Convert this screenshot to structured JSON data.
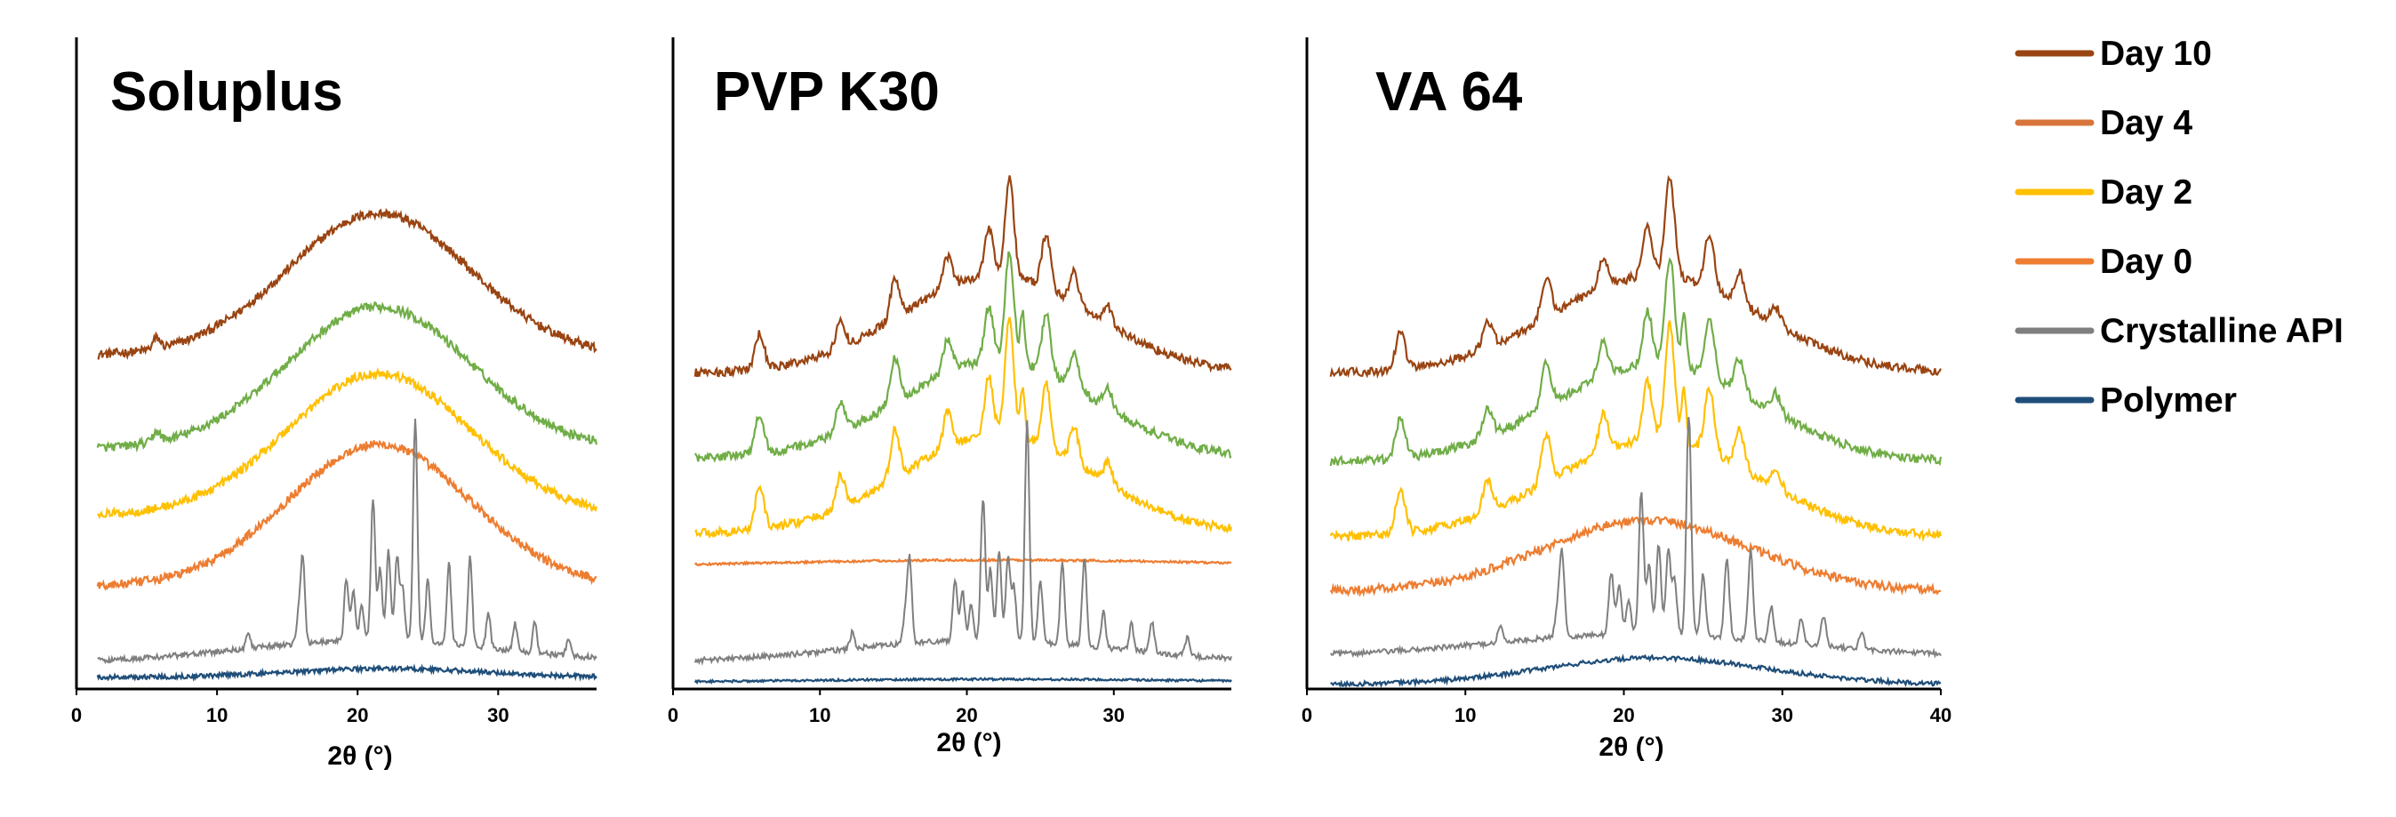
{
  "colors": {
    "day10": "#994412",
    "day4": "#70AD47",
    "day2": "#FFC000",
    "day0": "#ED7D31",
    "api": "#7F7F7F",
    "polymer": "#1F4E79"
  },
  "legend": [
    {
      "key": "day10",
      "label": "Day 10",
      "color": "#994412"
    },
    {
      "key": "day4",
      "label": "Day 4",
      "color": "#D8753C"
    },
    {
      "key": "day2",
      "label": "Day 2",
      "color": "#FFC000"
    },
    {
      "key": "day0",
      "label": "Day 0",
      "color": "#ED7D31"
    },
    {
      "key": "api",
      "label": "Crystalline API",
      "color": "#7F7F7F"
    },
    {
      "key": "polymer",
      "label": "Polymer",
      "color": "#1F4E79"
    }
  ],
  "chart_data": [
    {
      "type": "line",
      "title": "Soluplus",
      "xlabel": "2θ (°)",
      "ylabel": "",
      "xlim": [
        0,
        37
      ],
      "xticks": [
        "0",
        "10",
        "20",
        "30"
      ],
      "grid": false,
      "series_keys": [
        "day10",
        "day4",
        "day2",
        "day0",
        "api",
        "polymer"
      ],
      "series_states": {
        "day10": "amorphous",
        "day4": "amorphous",
        "day2": "amorphous",
        "day0": "amorphous",
        "api": "crystalline",
        "polymer": "amorphous"
      }
    },
    {
      "type": "line",
      "title": "PVP K30",
      "xlabel": "2θ (°)",
      "ylabel": "",
      "xlim": [
        0,
        38
      ],
      "xticks": [
        "0",
        "10",
        "20",
        "30"
      ],
      "grid": false,
      "series_keys": [
        "day10",
        "day4",
        "day2",
        "day0",
        "api",
        "polymer"
      ],
      "series_states": {
        "day10": "crystalline",
        "day4": "crystalline",
        "day2": "crystalline",
        "day0": "flat",
        "api": "crystalline",
        "polymer": "flat"
      }
    },
    {
      "type": "line",
      "title": "VA 64",
      "xlabel": "2θ (°)",
      "ylabel": "",
      "xlim": [
        0,
        40
      ],
      "xticks": [
        "0",
        "10",
        "20",
        "30",
        "40"
      ],
      "grid": false,
      "series_keys": [
        "day10",
        "day4",
        "day2",
        "day0",
        "api",
        "polymer"
      ],
      "series_states": {
        "day10": "crystalline",
        "day4": "crystalline",
        "day2": "crystalline",
        "day0": "amorphous",
        "api": "crystalline",
        "polymer": "amorphous"
      }
    }
  ]
}
